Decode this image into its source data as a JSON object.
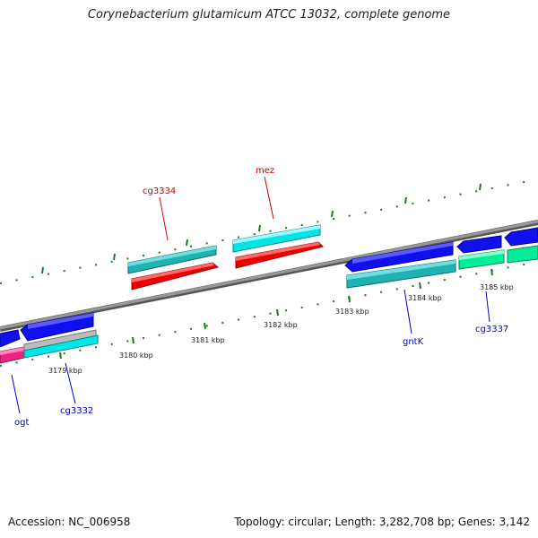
{
  "header": {
    "title": "Corynebacterium glutamicum ATCC 13032, complete genome"
  },
  "footer": {
    "accession": "Accession: NC_006958",
    "summary": "Topology: circular; Length: 3,282,708 bp; Genes: 3,142"
  },
  "colors": {
    "forward_label": "#cc0000",
    "reverse_label": "#0000cc",
    "tick_green": "#1a7a1a",
    "backbone": "#888888"
  },
  "ticks": [
    {
      "label": "3179 kbp"
    },
    {
      "label": "3180 kbp"
    },
    {
      "label": "3181 kbp"
    },
    {
      "label": "3182 kbp"
    },
    {
      "label": "3183 kbp"
    },
    {
      "label": "3184 kbp"
    },
    {
      "label": "3185 kbp"
    }
  ],
  "genes": [
    {
      "label": "cg3334",
      "icon": "gene-arrow"
    },
    {
      "label": "mez",
      "icon": "gene-arrow"
    },
    {
      "label": "ogt",
      "icon": "gene-arrow"
    },
    {
      "label": "cg3332",
      "icon": "gene-arrow"
    },
    {
      "label": "gntK",
      "icon": "gene-arrow"
    },
    {
      "label": "cg3337",
      "icon": "gene-arrow"
    }
  ]
}
